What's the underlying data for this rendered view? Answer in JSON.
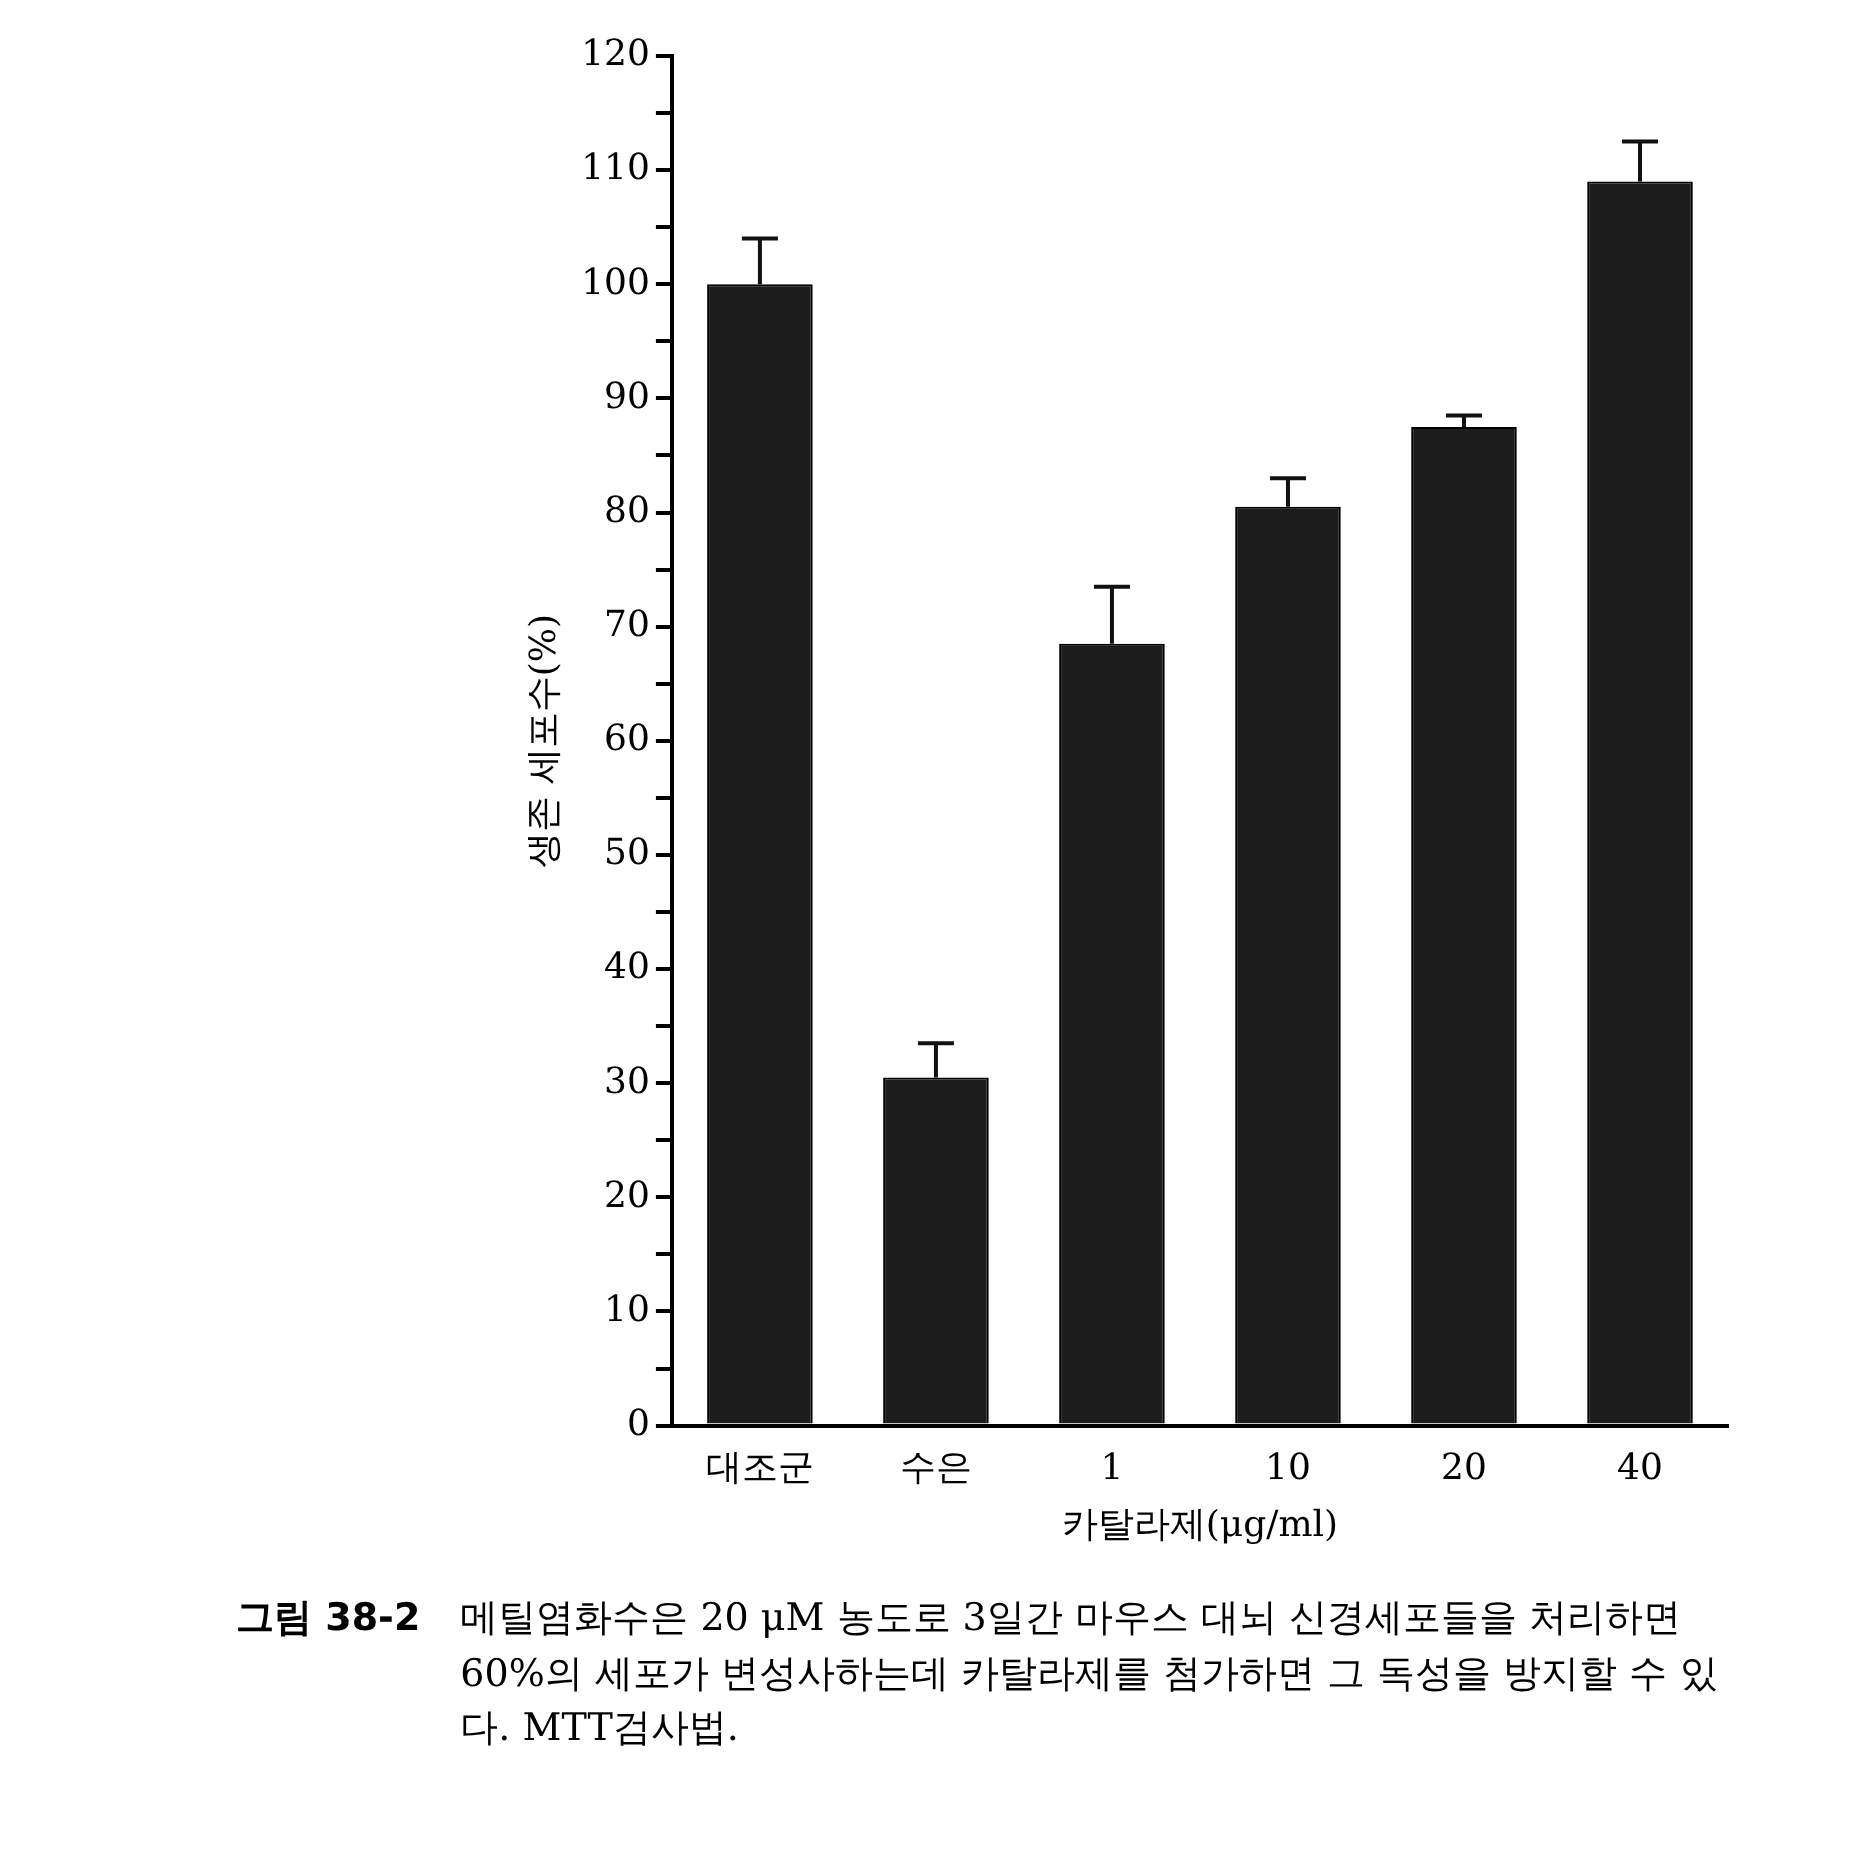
{
  "chart_data": {
    "type": "bar",
    "ylabel": "생존 세포수(%)",
    "xlabel": "카탈라제(μg/ml)",
    "categories": [
      "대조군",
      "수은",
      "1",
      "10",
      "20",
      "40"
    ],
    "values": [
      100,
      30.5,
      68.5,
      80.5,
      87.5,
      109
    ],
    "errors": [
      [
        100,
        104
      ],
      [
        30.5,
        33.5
      ],
      [
        68.5,
        73.5
      ],
      [
        80.5,
        83
      ],
      [
        87.5,
        88.5
      ],
      [
        109,
        112.5
      ]
    ],
    "color": "#1c1c1c",
    "ylim": [
      0,
      120
    ],
    "yticks": [
      0,
      {
        "value": 5,
        "label": null
      },
      10,
      {
        "value": 15,
        "label": null
      },
      20,
      {
        "value": 25,
        "label": null
      },
      30,
      {
        "value": 35,
        "label": null
      },
      40,
      {
        "value": 45,
        "label": null
      },
      50,
      {
        "value": 55,
        "label": null
      },
      60,
      {
        "value": 65,
        "label": null
      },
      70,
      {
        "value": 75,
        "label": null
      },
      80,
      {
        "value": 85,
        "label": null
      },
      90,
      {
        "value": 95,
        "label": null
      },
      100,
      {
        "value": 105,
        "label": null
      },
      110,
      {
        "value": 115,
        "label": null
      },
      120
    ],
    "annotations": [
      "그림 38-2",
      "메틸염화수은 20 μM 농도로 3일간 마우스 대뇌 신경세포들을 처리하면 60%의 세포가 변성사하는데 카탈라제를 첨가하면 그 독성을 방지할 수 있다. MTT검사법."
    ]
  }
}
